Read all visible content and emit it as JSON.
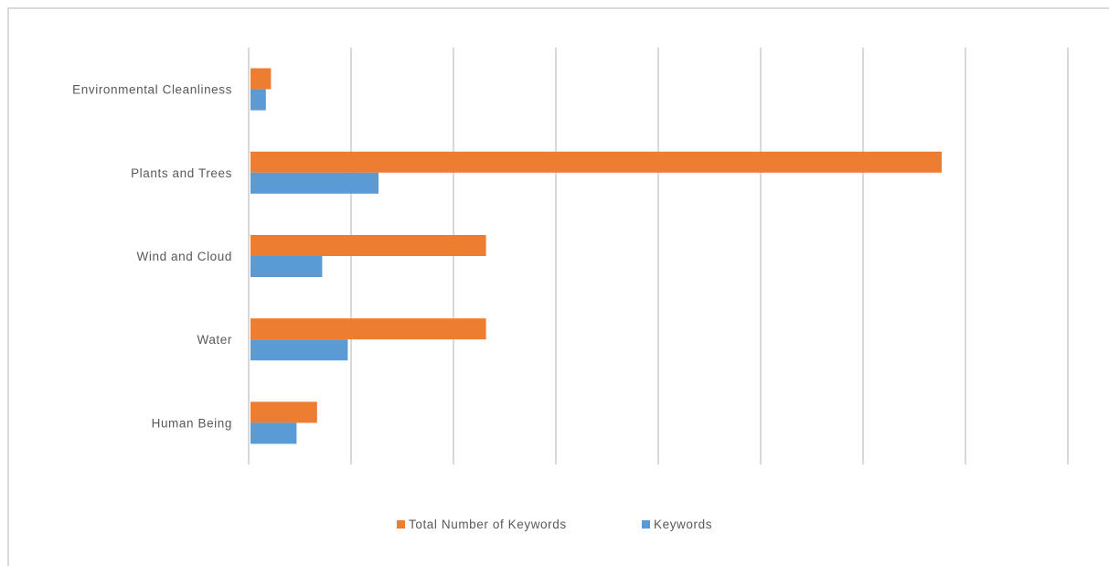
{
  "chart_data": {
    "type": "bar",
    "orientation": "horizontal",
    "categories": [
      "Environmental Cleanliness",
      "Plants and Trees",
      "Wind and Cloud",
      "Water",
      "Human Being"
    ],
    "series": [
      {
        "name": "Total Number of Keywords",
        "color": "#ED7D31",
        "values": [
          2,
          67.5,
          23,
          23,
          6.5
        ]
      },
      {
        "name": "Keywords",
        "color": "#5B9BD5",
        "values": [
          1.5,
          12.5,
          7,
          9.5,
          4.5
        ]
      }
    ],
    "xlim": [
      0,
      80
    ],
    "grid": true,
    "tick_labels_visible": false,
    "legend_position": "bottom"
  }
}
